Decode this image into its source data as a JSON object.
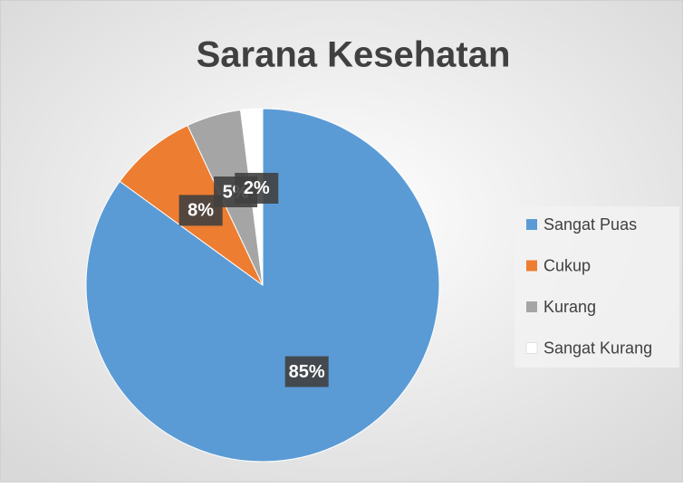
{
  "chart_data": {
    "type": "pie",
    "title": "Sarana Kesehatan",
    "categories": [
      "Sangat Puas",
      "Cukup",
      "Kurang",
      "Sangat Kurang"
    ],
    "values": [
      85,
      8,
      5,
      2
    ],
    "value_labels": [
      "85%",
      "8%",
      "5%",
      "2%"
    ],
    "colors": [
      "#5b9bd5",
      "#ed7d31",
      "#a5a5a5",
      "#ffffff"
    ],
    "legend": "right"
  }
}
